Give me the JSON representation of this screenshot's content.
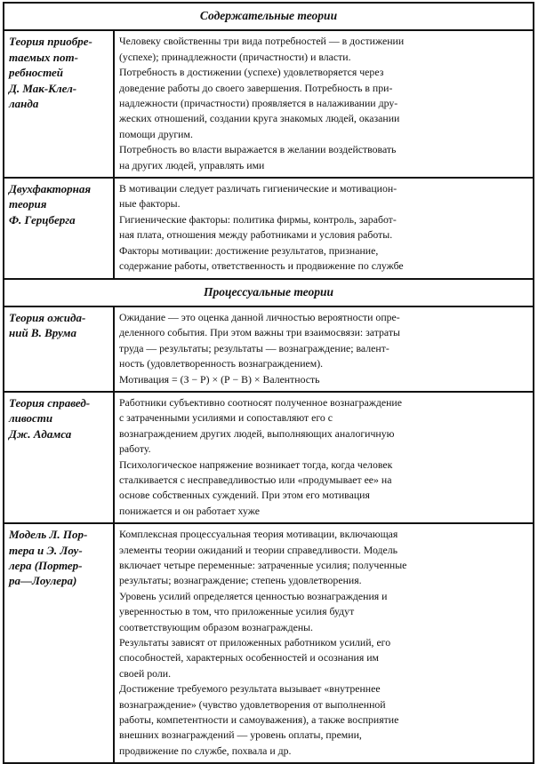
{
  "sections": [
    {
      "title": "Содержательные теории",
      "rows": [
        {
          "theory": [
            "Теория приобре-",
            "таемых пот-",
            "ребностей",
            "Д. Мак-Клел-",
            "ланда"
          ],
          "description": [
            "Человеку свойственны три вида потребностей — в достижении",
            "(успехе); принадлежности (причастности) и власти.",
            "Потребность в достижении (успехе) удовлетворяется через",
            "доведение работы до своего завершения. Потребность в при-",
            "надлежности (причастности) проявляется в налаживании дру-",
            "жеских отношений, создании круга знакомых людей, оказании",
            "помощи другим.",
            "Потребность во власти выражается в желании воздействовать",
            "на других людей, управлять ими"
          ]
        },
        {
          "theory": [
            "Двухфакторная",
            "теория",
            "Ф. Герцберга"
          ],
          "description": [
            "В мотивации следует различать гигиенические и мотивацион-",
            "ные факторы.",
            "Гигиенические факторы: политика фирмы, контроль, заработ-",
            "ная плата, отношения между работниками и условия работы.",
            "Факторы мотивации: достижение результатов, признание,",
            "содержание работы, ответственность и продвижение по службе"
          ]
        }
      ]
    },
    {
      "title": "Процессуальные теории",
      "rows": [
        {
          "theory": [
            "Теория ожида-",
            "ний В. Врума"
          ],
          "description": [
            "Ожидание — это оценка данной личностью вероятности опре-",
            "деленного события. При этом важны три взаимосвязи: затраты",
            "труда — результаты; результаты — вознаграждение; валент-",
            "ность (удовлетворенность вознаграждением).",
            "Мотивация = (З − Р) × (Р − В) × Валентность"
          ]
        },
        {
          "theory": [
            "Теория справед-",
            "ливости",
            "Дж. Адамса"
          ],
          "description": [
            "Работники субъективно соотносят полученное вознаграждение",
            "с затраченными усилиями и сопоставляют его с",
            "вознаграждением других людей, выполняющих аналогичную",
            "работу.",
            "Психологическое напряжение возникает тогда, когда человек",
            "сталкивается с несправедливостью или «продумывает ее» на",
            "основе собственных суждений. При этом его мотивация",
            "понижается и он работает хуже"
          ]
        },
        {
          "theory": [
            "Модель Л. Пор-",
            "тера и Э. Лоу-",
            "лера (Портер-",
            "ра—Лоулера)"
          ],
          "description": [
            "Комплексная процессуальная теория мотивации, включающая",
            "элементы теории ожиданий и теории справедливости. Модель",
            "включает четыре переменные: затраченные усилия; полученные",
            "результаты; вознаграждение; степень удовлетворения.",
            "Уровень усилий определяется ценностью вознаграждения и",
            "уверенностью в том, что приложенные усилия будут",
            "соответствующим образом вознаграждены.",
            "Результаты зависят от приложенных работником усилий, его",
            "способностей, характерных особенностей и осознания им",
            "своей роли.",
            "Достижение требуемого результата вызывает «внутреннее",
            "вознаграждение» (чувство удовлетворения от выполненной",
            "работы, компетентности и самоуважения), а также восприятие",
            "внешних вознаграждений — уровень оплаты, премии,",
            "продвижение по службе, похвала и др."
          ]
        }
      ]
    }
  ]
}
